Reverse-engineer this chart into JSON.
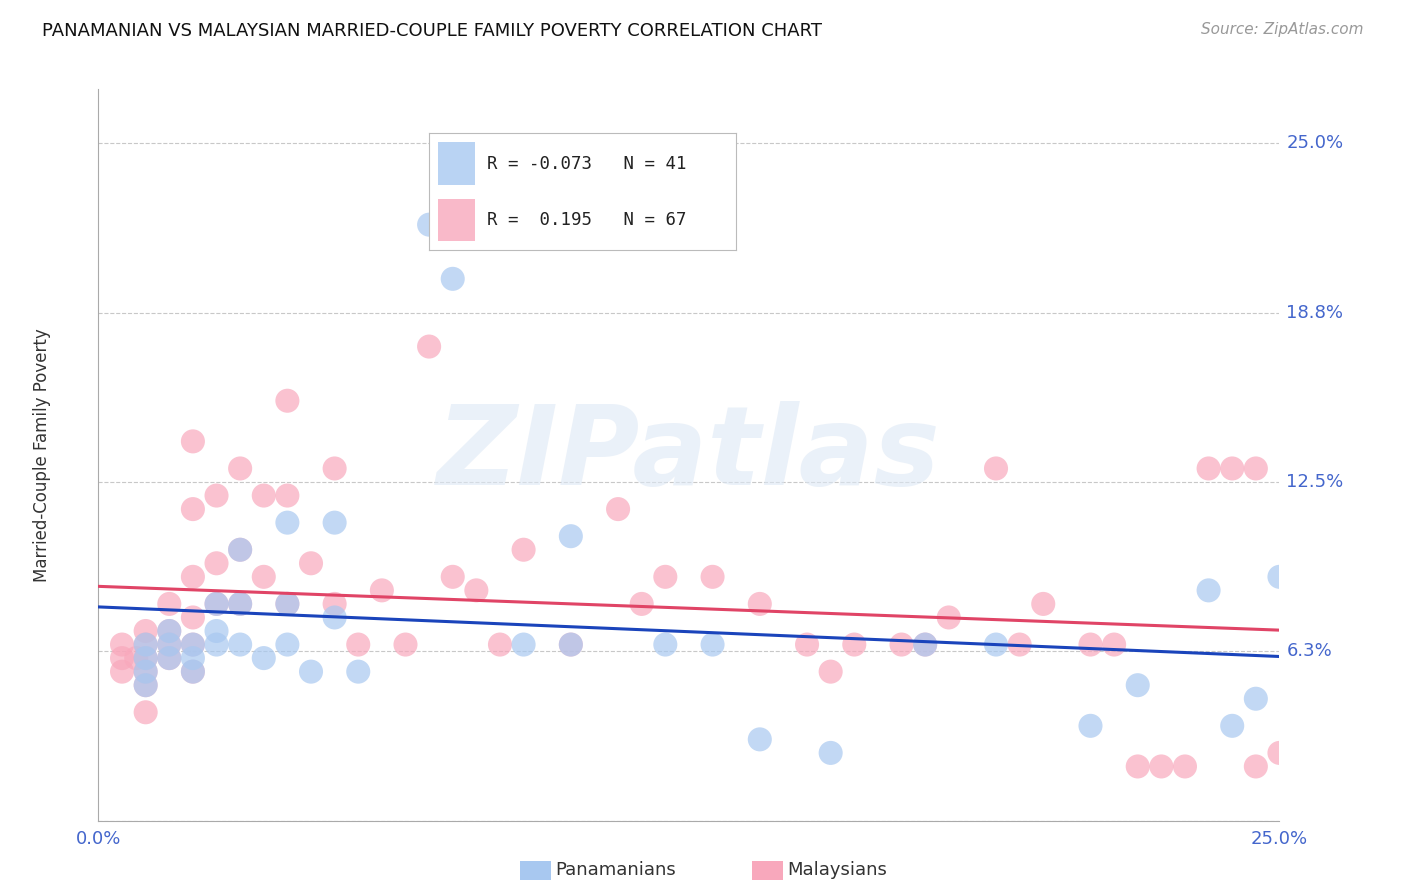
{
  "title": "PANAMANIAN VS MALAYSIAN MARRIED-COUPLE FAMILY POVERTY CORRELATION CHART",
  "source": "Source: ZipAtlas.com",
  "ylabel": "Married-Couple Family Poverty",
  "xlim": [
    0.0,
    0.25
  ],
  "ylim": [
    0.0,
    0.27
  ],
  "ytick_vals": [
    0.0,
    0.0625,
    0.125,
    0.1875,
    0.25
  ],
  "ytick_labels": [
    "",
    "6.3%",
    "12.5%",
    "18.8%",
    "25.0%"
  ],
  "background_color": "#ffffff",
  "grid_color": "#c8c8c8",
  "panamanian_color": "#a8c8f0",
  "malaysian_color": "#f8a8bc",
  "trend_pan_color": "#1a44bb",
  "trend_mal_color": "#e04466",
  "watermark": "ZIPatlas",
  "pan_x": [
    0.01,
    0.01,
    0.01,
    0.01,
    0.015,
    0.015,
    0.015,
    0.02,
    0.02,
    0.02,
    0.025,
    0.025,
    0.025,
    0.03,
    0.03,
    0.03,
    0.035,
    0.04,
    0.04,
    0.04,
    0.045,
    0.05,
    0.05,
    0.055,
    0.07,
    0.075,
    0.09,
    0.1,
    0.1,
    0.12,
    0.13,
    0.14,
    0.155,
    0.175,
    0.19,
    0.21,
    0.22,
    0.235,
    0.24,
    0.245,
    0.25
  ],
  "pan_y": [
    0.065,
    0.06,
    0.055,
    0.05,
    0.07,
    0.065,
    0.06,
    0.065,
    0.06,
    0.055,
    0.08,
    0.07,
    0.065,
    0.1,
    0.08,
    0.065,
    0.06,
    0.11,
    0.08,
    0.065,
    0.055,
    0.11,
    0.075,
    0.055,
    0.22,
    0.2,
    0.065,
    0.105,
    0.065,
    0.065,
    0.065,
    0.03,
    0.025,
    0.065,
    0.065,
    0.035,
    0.05,
    0.085,
    0.035,
    0.045,
    0.09
  ],
  "mal_x": [
    0.005,
    0.005,
    0.005,
    0.008,
    0.01,
    0.01,
    0.01,
    0.01,
    0.01,
    0.01,
    0.015,
    0.015,
    0.015,
    0.015,
    0.02,
    0.02,
    0.02,
    0.02,
    0.02,
    0.02,
    0.025,
    0.025,
    0.025,
    0.03,
    0.03,
    0.03,
    0.035,
    0.035,
    0.04,
    0.04,
    0.04,
    0.045,
    0.05,
    0.05,
    0.055,
    0.06,
    0.065,
    0.07,
    0.075,
    0.08,
    0.085,
    0.09,
    0.1,
    0.11,
    0.115,
    0.12,
    0.13,
    0.14,
    0.15,
    0.155,
    0.16,
    0.17,
    0.175,
    0.18,
    0.19,
    0.195,
    0.2,
    0.21,
    0.215,
    0.22,
    0.225,
    0.23,
    0.235,
    0.24,
    0.245,
    0.245,
    0.25
  ],
  "mal_y": [
    0.065,
    0.06,
    0.055,
    0.06,
    0.07,
    0.065,
    0.06,
    0.055,
    0.05,
    0.04,
    0.08,
    0.07,
    0.065,
    0.06,
    0.14,
    0.115,
    0.09,
    0.075,
    0.065,
    0.055,
    0.12,
    0.095,
    0.08,
    0.13,
    0.1,
    0.08,
    0.12,
    0.09,
    0.155,
    0.12,
    0.08,
    0.095,
    0.13,
    0.08,
    0.065,
    0.085,
    0.065,
    0.175,
    0.09,
    0.085,
    0.065,
    0.1,
    0.065,
    0.115,
    0.08,
    0.09,
    0.09,
    0.08,
    0.065,
    0.055,
    0.065,
    0.065,
    0.065,
    0.075,
    0.13,
    0.065,
    0.08,
    0.065,
    0.065,
    0.02,
    0.02,
    0.02,
    0.13,
    0.13,
    0.13,
    0.02,
    0.025
  ]
}
